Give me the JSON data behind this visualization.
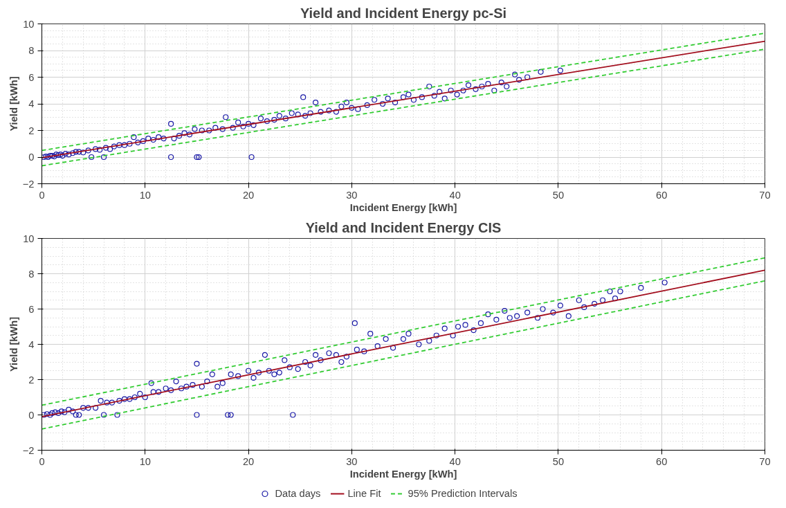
{
  "chart_data": [
    {
      "type": "scatter",
      "title": "Yield and Incident Energy pc-Si",
      "xlabel": "Incident Energy [kWh]",
      "ylabel": "Yield [kWh]",
      "xlim": [
        0,
        70
      ],
      "ylim": [
        -2,
        10
      ],
      "xticks": [
        0,
        10,
        20,
        30,
        40,
        50,
        60,
        70
      ],
      "yticks": [
        -2,
        0,
        2,
        4,
        6,
        8,
        10
      ],
      "grid": true,
      "legend": false,
      "series": [
        {
          "type": "scatter",
          "marker": "circle",
          "color": "#1a1aa6",
          "x": [
            0.2,
            0.4,
            0.6,
            0.8,
            1.0,
            1.2,
            1.4,
            1.6,
            1.8,
            2.0,
            2.3,
            2.6,
            3.0,
            3.3,
            3.6,
            4.0,
            4.5,
            4.8,
            5.2,
            5.6,
            6.0,
            6.2,
            6.6,
            7.0,
            7.5,
            8.0,
            8.5,
            8.9,
            9.3,
            9.8,
            10.3,
            10.8,
            11.3,
            11.8,
            12.5,
            12.5,
            12.8,
            13.3,
            13.8,
            14.3,
            14.8,
            15.0,
            15.2,
            15.5,
            16.2,
            16.8,
            17.5,
            17.8,
            18.5,
            19.0,
            19.5,
            20.0,
            20.3,
            20.5,
            21.2,
            21.8,
            22.5,
            23.0,
            23.6,
            24.2,
            24.8,
            25.3,
            25.5,
            26.0,
            26.5,
            27.0,
            27.8,
            28.5,
            29.0,
            29.5,
            30.0,
            30.6,
            31.5,
            32.2,
            33.0,
            33.5,
            34.2,
            35.0,
            35.5,
            36.0,
            36.8,
            37.5,
            38.0,
            38.5,
            39.0,
            39.6,
            40.2,
            40.8,
            41.3,
            42.0,
            42.6,
            43.2,
            43.8,
            44.5,
            45.0,
            45.8,
            46.2,
            47.0,
            48.3,
            50.2
          ],
          "values": [
            0.0,
            0.05,
            0.0,
            0.1,
            0.1,
            0.05,
            0.2,
            0.15,
            0.2,
            0.1,
            0.25,
            0.2,
            0.3,
            0.4,
            0.4,
            0.35,
            0.5,
            0.0,
            0.6,
            0.55,
            0.0,
            0.7,
            0.6,
            0.8,
            0.9,
            0.9,
            1.0,
            1.5,
            1.1,
            1.2,
            1.4,
            1.3,
            1.5,
            1.4,
            2.5,
            0.0,
            1.4,
            1.6,
            1.8,
            1.7,
            2.1,
            0.0,
            0.0,
            2.0,
            2.0,
            2.2,
            2.1,
            3.0,
            2.2,
            2.6,
            2.3,
            2.5,
            0.0,
            2.4,
            2.9,
            2.7,
            2.8,
            3.1,
            2.9,
            3.3,
            3.2,
            4.5,
            3.1,
            3.3,
            4.1,
            3.4,
            3.5,
            3.4,
            3.8,
            4.1,
            3.7,
            3.6,
            3.9,
            4.3,
            4.0,
            4.4,
            4.1,
            4.5,
            4.7,
            4.3,
            4.5,
            5.3,
            4.6,
            4.9,
            4.4,
            5.0,
            4.7,
            5.0,
            5.4,
            5.1,
            5.3,
            5.5,
            5.0,
            5.6,
            5.3,
            6.2,
            5.8,
            6.0,
            6.4,
            6.5
          ]
        },
        {
          "type": "line",
          "line_style": "solid",
          "color": "#a30f1e",
          "x": [
            0,
            70
          ],
          "values": [
            -0.05,
            8.7
          ]
        },
        {
          "type": "line",
          "line_style": "dashed",
          "color": "#33cc33",
          "x": [
            0,
            70
          ],
          "values": [
            0.5,
            9.3
          ]
        },
        {
          "type": "line",
          "line_style": "dashed",
          "color": "#33cc33",
          "x": [
            0,
            70
          ],
          "values": [
            -0.65,
            8.1
          ]
        }
      ]
    },
    {
      "type": "scatter",
      "title": "Yield and Incident Energy CIS",
      "xlabel": "Incident Energy [kWh]",
      "ylabel": "Yield [kWh]",
      "xlim": [
        0,
        70
      ],
      "ylim": [
        -2,
        10
      ],
      "xticks": [
        0,
        10,
        20,
        30,
        40,
        50,
        60,
        70
      ],
      "yticks": [
        -2,
        0,
        2,
        4,
        6,
        8,
        10
      ],
      "grid": true,
      "legend": "bottom",
      "series": [
        {
          "name": "Data days",
          "marker": "circle",
          "color": "#1a1aa6",
          "x": [
            0.2,
            0.5,
            0.8,
            1.0,
            1.3,
            1.6,
            1.9,
            2.2,
            2.6,
            3.0,
            3.3,
            3.6,
            4.0,
            4.5,
            5.2,
            5.7,
            6.0,
            6.3,
            6.8,
            7.3,
            7.5,
            8.0,
            8.5,
            9.0,
            9.5,
            10.0,
            10.6,
            10.8,
            11.3,
            12.0,
            12.5,
            13.0,
            13.5,
            14.0,
            14.6,
            15.0,
            15.0,
            15.5,
            16.0,
            16.5,
            17.0,
            17.5,
            18.0,
            18.3,
            18.3,
            19.0,
            20.0,
            20.5,
            21.0,
            21.6,
            22.0,
            22.5,
            23.0,
            23.5,
            24.0,
            24.3,
            24.8,
            25.5,
            26.0,
            26.5,
            27.0,
            27.8,
            28.5,
            29.0,
            29.5,
            30.3,
            30.5,
            31.2,
            31.8,
            32.5,
            33.3,
            34.0,
            35.0,
            35.5,
            36.5,
            37.5,
            38.2,
            39.0,
            39.8,
            40.3,
            41.0,
            41.8,
            42.5,
            43.2,
            44.0,
            44.8,
            45.3,
            46.0,
            47.0,
            48.0,
            48.5,
            49.5,
            50.2,
            51.0,
            52.0,
            52.5,
            53.5,
            54.3,
            55.0,
            55.5,
            56.0,
            58.0,
            60.3
          ],
          "values": [
            0.0,
            0.05,
            0.0,
            0.1,
            0.15,
            0.1,
            0.2,
            0.15,
            0.3,
            0.2,
            0.0,
            0.0,
            0.4,
            0.4,
            0.4,
            0.8,
            0.0,
            0.7,
            0.7,
            0.0,
            0.8,
            0.9,
            0.9,
            1.0,
            1.2,
            1.0,
            1.8,
            1.3,
            1.3,
            1.5,
            1.4,
            1.9,
            1.5,
            1.6,
            1.7,
            2.9,
            0.0,
            1.6,
            1.9,
            2.3,
            1.6,
            1.8,
            0.0,
            0.0,
            2.3,
            2.2,
            2.5,
            2.1,
            2.4,
            3.4,
            2.5,
            2.3,
            2.4,
            3.1,
            2.7,
            0.0,
            2.6,
            3.0,
            2.8,
            3.4,
            3.1,
            3.5,
            3.4,
            3.0,
            3.3,
            5.2,
            3.7,
            3.6,
            4.6,
            3.9,
            4.3,
            3.8,
            4.3,
            4.6,
            4.0,
            4.2,
            4.5,
            4.9,
            4.5,
            5.0,
            5.1,
            4.8,
            5.2,
            5.7,
            5.4,
            5.9,
            5.5,
            5.6,
            5.8,
            5.5,
            6.0,
            5.8,
            6.2,
            5.6,
            6.5,
            6.1,
            6.3,
            6.5,
            7.0,
            6.6,
            7.0,
            7.2,
            7.5
          ]
        },
        {
          "name": "Line Fit",
          "type": "line",
          "line_style": "solid",
          "color": "#a30f1e",
          "x": [
            0,
            70
          ],
          "values": [
            -0.1,
            8.2
          ]
        },
        {
          "name": "95% Prediction Intervals",
          "type": "line",
          "line_style": "dashed",
          "color": "#33cc33",
          "x": [
            0,
            70
          ],
          "values": [
            0.55,
            8.9
          ]
        },
        {
          "type": "line",
          "line_style": "dashed",
          "color": "#33cc33",
          "x": [
            0,
            70
          ],
          "values": [
            -0.8,
            7.6
          ]
        }
      ]
    }
  ]
}
